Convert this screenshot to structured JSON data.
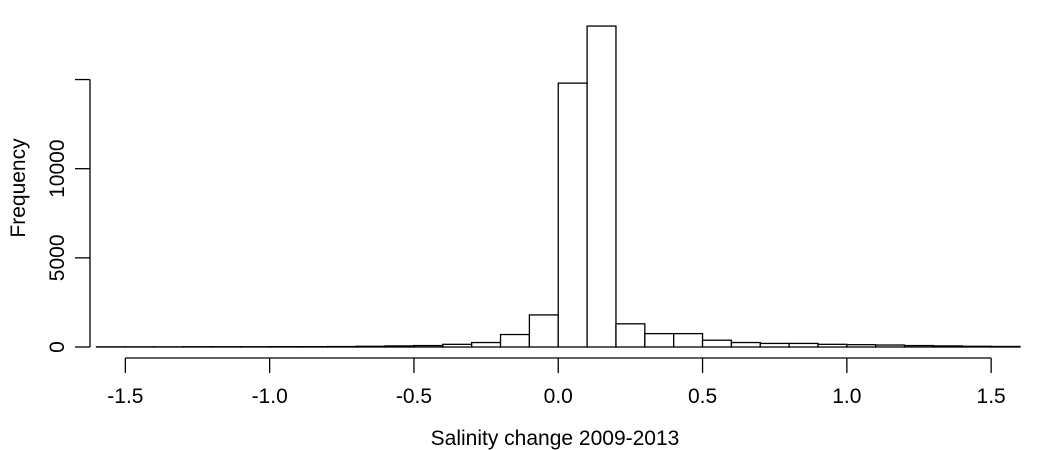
{
  "chart_data": {
    "type": "bar",
    "xlabel": "Salinity change 2009-2013",
    "ylabel": "Frequency",
    "x_ticks": [
      "-1.5",
      "-1.0",
      "-0.5",
      "0.0",
      "0.5",
      "1.0",
      "1.5"
    ],
    "x_tick_values": [
      -1.5,
      -1.0,
      -0.5,
      0.0,
      0.5,
      1.0,
      1.5
    ],
    "y_ticks": [
      "0",
      "5000",
      "10000"
    ],
    "y_tick_values": [
      0,
      5000,
      10000
    ],
    "xlim": [
      -1.6,
      1.6
    ],
    "ylim": [
      0,
      17500
    ],
    "y_axis_top": 15000,
    "bin_width": 0.1,
    "bins_start": [
      -1.6,
      -1.5,
      -1.4,
      -1.3,
      -1.2,
      -1.1,
      -1.0,
      -0.9,
      -0.8,
      -0.7,
      -0.6,
      -0.5,
      -0.4,
      -0.3,
      -0.2,
      -0.1,
      0.0,
      0.1,
      0.2,
      0.3,
      0.4,
      0.5,
      0.6,
      0.7,
      0.8,
      0.9,
      1.0,
      1.1,
      1.2,
      1.3,
      1.4,
      1.5
    ],
    "values": [
      10,
      10,
      10,
      15,
      15,
      15,
      20,
      20,
      25,
      40,
      60,
      80,
      150,
      250,
      700,
      1800,
      14800,
      18000,
      1300,
      750,
      750,
      380,
      250,
      200,
      200,
      150,
      130,
      110,
      80,
      60,
      40,
      30
    ],
    "grid": false,
    "legend": "none"
  }
}
